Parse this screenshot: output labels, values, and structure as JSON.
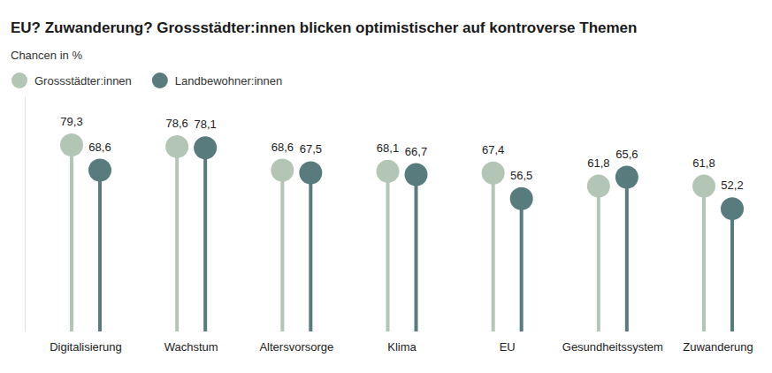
{
  "chart_data": {
    "type": "lollipop",
    "title": "EU? Zuwanderung? Grossstädter:innen blicken optimistischer auf kontroverse Themen",
    "subtitle": "Chancen in %",
    "categories": [
      "Digitalisierung",
      "Wachstum",
      "Altersvorsorge",
      "Klima",
      "EU",
      "Gesundheitssystem",
      "Zuwanderung"
    ],
    "series": [
      {
        "name": "Grossstädter:innen",
        "color": "#b3c5b5",
        "values": [
          79.3,
          78.6,
          68.6,
          68.1,
          67.4,
          61.8,
          61.8
        ],
        "value_labels": [
          "79,3",
          "78,6",
          "68,6",
          "68,1",
          "67,4",
          "61,8",
          "61,8"
        ]
      },
      {
        "name": "Landbewohner:innen",
        "color": "#587b7e",
        "values": [
          68.6,
          78.1,
          67.5,
          66.7,
          56.5,
          65.6,
          52.2
        ],
        "value_labels": [
          "68,6",
          "78,1",
          "67,5",
          "66,7",
          "56,5",
          "65,6",
          "52,2"
        ]
      }
    ],
    "ylim": [
      0,
      100
    ],
    "yticks": [],
    "tick_labels": "x",
    "data_labels": true,
    "legend": "top-left",
    "grid": false
  }
}
